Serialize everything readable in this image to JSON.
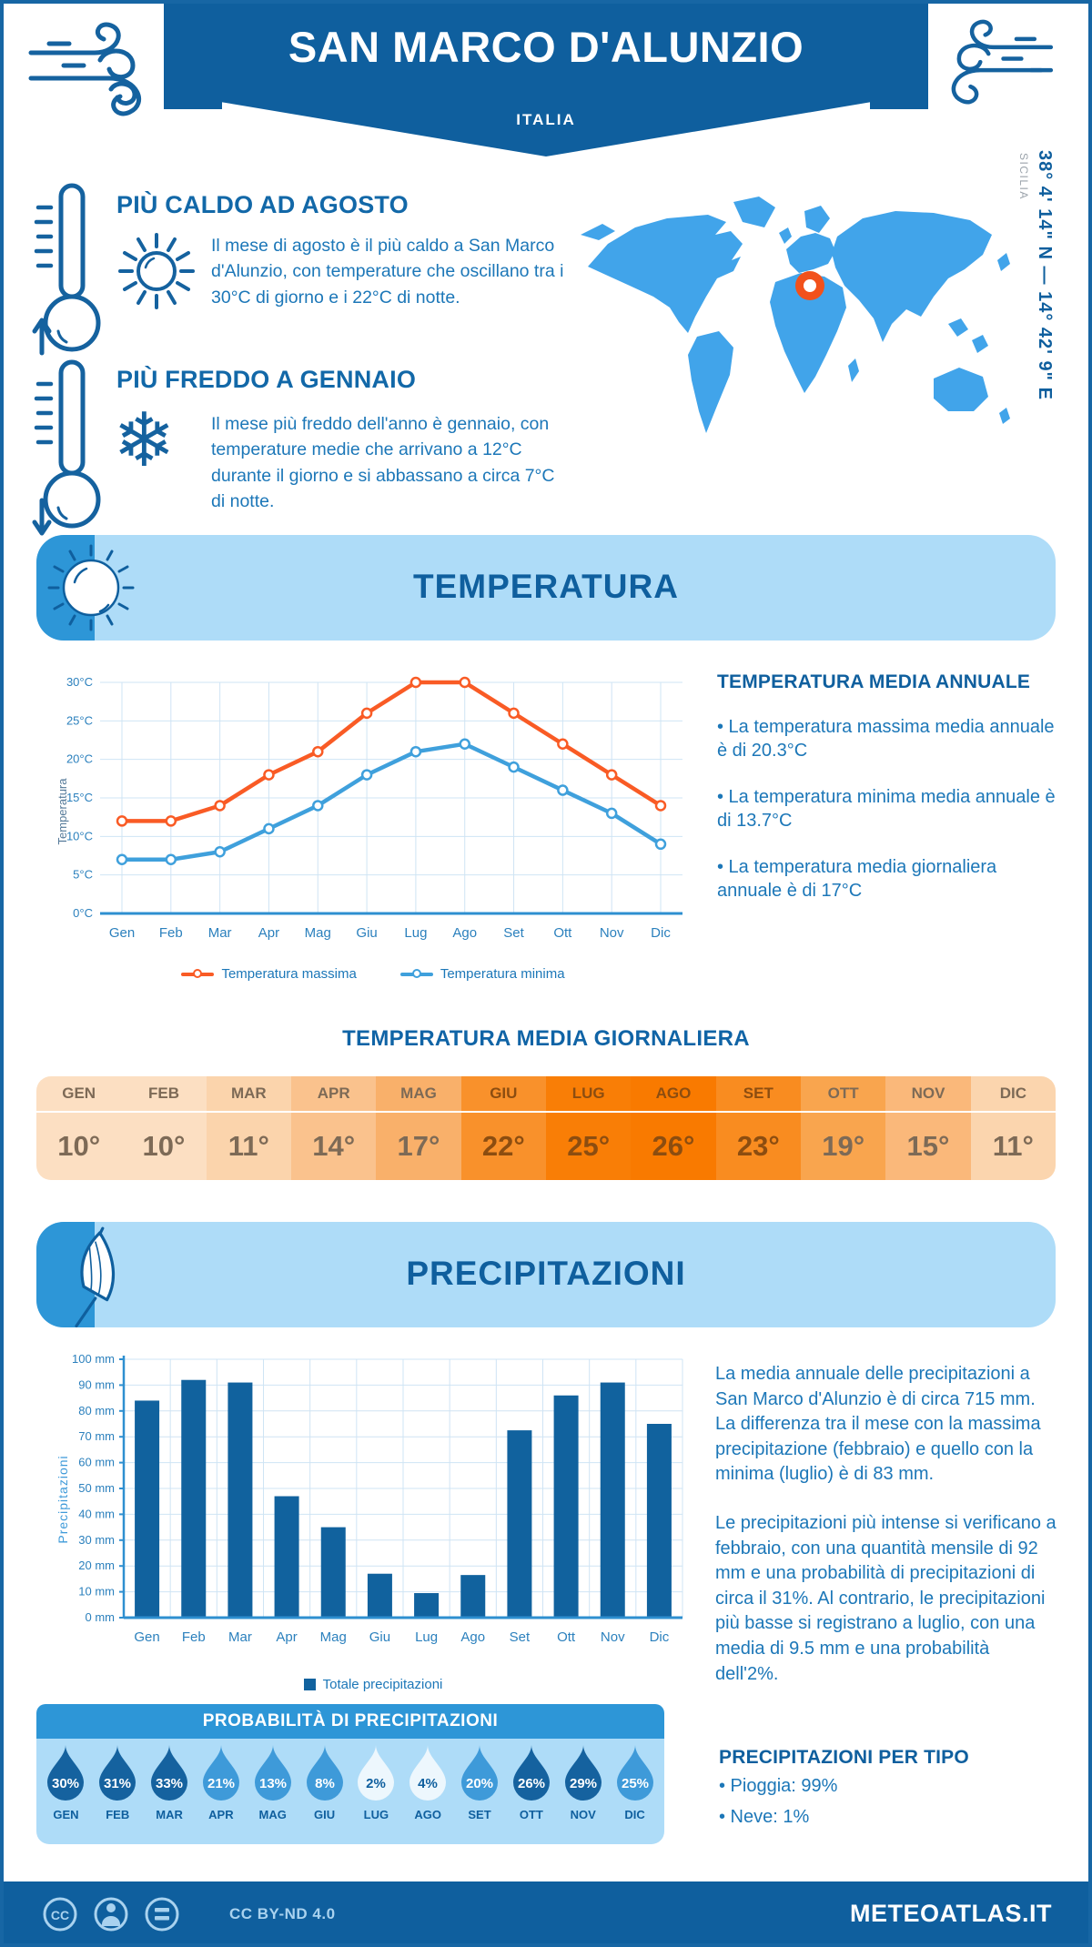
{
  "page": {
    "location": "SAN MARCO D'ALUNZIO",
    "country": "ITALIA",
    "coordinates": "38° 4' 14\" N — 14° 42' 9\" E",
    "region": "SICILIA"
  },
  "highlights": {
    "hot": {
      "title": "PIÙ CALDO AD AGOSTO",
      "text": "Il mese di agosto è il più caldo a San Marco d'Alunzio, con temperature che oscillano tra i 30°C di giorno e i 22°C di notte."
    },
    "cold": {
      "title": "PIÙ FREDDO A GENNAIO",
      "text": "Il mese più freddo dell'anno è gennaio, con temperature medie che arrivano a 12°C durante il giorno e si abbassano a circa 7°C di notte."
    }
  },
  "temperature_section": {
    "title": "TEMPERATURA",
    "annual": {
      "title": "TEMPERATURA MEDIA ANNUALE",
      "bullets": [
        "• La temperatura massima media annuale è di 20.3°C",
        "• La temperatura minima media annuale è di 13.7°C",
        "• La temperatura media giornaliera annuale è di 17°C"
      ]
    },
    "daily": {
      "title": "TEMPERATURA MEDIA GIORNALIERA",
      "cells": [
        {
          "month": "GEN",
          "value": "10°",
          "bg": "#FCDFC2",
          "fg": "#7D6A56"
        },
        {
          "month": "FEB",
          "value": "10°",
          "bg": "#FCDFC2",
          "fg": "#7D6A56"
        },
        {
          "month": "MAR",
          "value": "11°",
          "bg": "#FBD4AC",
          "fg": "#7D6A56"
        },
        {
          "month": "APR",
          "value": "14°",
          "bg": "#FAC28D",
          "fg": "#7D6A56"
        },
        {
          "month": "MAG",
          "value": "17°",
          "bg": "#F9B06A",
          "fg": "#7D6A56"
        },
        {
          "month": "GIU",
          "value": "22°",
          "bg": "#F9912B",
          "fg": "#8C4D10"
        },
        {
          "month": "LUG",
          "value": "25°",
          "bg": "#F97E06",
          "fg": "#8C4D10"
        },
        {
          "month": "AGO",
          "value": "26°",
          "bg": "#F97A00",
          "fg": "#8C4D10"
        },
        {
          "month": "SET",
          "value": "23°",
          "bg": "#F98C20",
          "fg": "#8C4D10"
        },
        {
          "month": "OTT",
          "value": "19°",
          "bg": "#F9A54E",
          "fg": "#7D6A56"
        },
        {
          "month": "NOV",
          "value": "15°",
          "bg": "#FAB87A",
          "fg": "#7D6A56"
        },
        {
          "month": "DIC",
          "value": "11°",
          "bg": "#FBD5AE",
          "fg": "#7D6A56"
        }
      ]
    }
  },
  "precipitation_section": {
    "title": "PRECIPITAZIONI",
    "summary_paragraphs": [
      "La media annuale delle precipitazioni a San Marco d'Alunzio è di circa 715 mm. La differenza tra il mese con la massima precipitazione (febbraio) e quello con la minima (luglio) è di 83 mm.",
      "Le precipitazioni più intense si verificano a febbraio, con una quantità mensile di 92 mm e una probabilità di precipitazioni di circa il 31%. Al contrario, le precipitazioni più basse si registrano a luglio, con una media di 9.5 mm e una probabilità dell'2%."
    ],
    "probability": {
      "title": "PROBABILITÀ DI PRECIPITAZIONI",
      "drops": [
        {
          "month": "GEN",
          "value": "30%",
          "fill": "#15629F",
          "text_color": "#ffffff"
        },
        {
          "month": "FEB",
          "value": "31%",
          "fill": "#15629F",
          "text_color": "#ffffff"
        },
        {
          "month": "MAR",
          "value": "33%",
          "fill": "#15629F",
          "text_color": "#ffffff"
        },
        {
          "month": "APR",
          "value": "21%",
          "fill": "#3E9AD9",
          "text_color": "#ffffff"
        },
        {
          "month": "MAG",
          "value": "13%",
          "fill": "#3E9AD9",
          "text_color": "#ffffff"
        },
        {
          "month": "GIU",
          "value": "8%",
          "fill": "#3E9AD9",
          "text_color": "#ffffff"
        },
        {
          "month": "LUG",
          "value": "2%",
          "fill": "#EDF7FD",
          "text_color": "#0F5F9E"
        },
        {
          "month": "AGO",
          "value": "4%",
          "fill": "#EDF7FD",
          "text_color": "#0F5F9E"
        },
        {
          "month": "SET",
          "value": "20%",
          "fill": "#3E9AD9",
          "text_color": "#ffffff"
        },
        {
          "month": "OTT",
          "value": "26%",
          "fill": "#15629F",
          "text_color": "#ffffff"
        },
        {
          "month": "NOV",
          "value": "29%",
          "fill": "#15629F",
          "text_color": "#ffffff"
        },
        {
          "month": "DIC",
          "value": "25%",
          "fill": "#3E9AD9",
          "text_color": "#ffffff"
        }
      ]
    },
    "by_type": {
      "title": "PRECIPITAZIONI PER TIPO",
      "items": [
        "• Pioggia: 99%",
        "• Neve: 1%"
      ]
    }
  },
  "chart_data": [
    {
      "type": "line",
      "categories": [
        "Gen",
        "Feb",
        "Mar",
        "Apr",
        "Mag",
        "Giu",
        "Lug",
        "Ago",
        "Set",
        "Ott",
        "Nov",
        "Dic"
      ],
      "series": [
        {
          "name": "Temperatura massima",
          "color": "#F95B25",
          "values": [
            12,
            12,
            14,
            18,
            21,
            26,
            30,
            30,
            26,
            22,
            18,
            14
          ]
        },
        {
          "name": "Temperatura minima",
          "color": "#3FA0DC",
          "values": [
            7,
            7,
            8,
            11,
            14,
            18,
            21,
            22,
            19,
            16,
            13,
            9
          ]
        }
      ],
      "ylabel": "Temperatura",
      "ylim": [
        0,
        30
      ],
      "ytick_step": 5,
      "ytick_suffix": "°C",
      "grid": true,
      "legend_position": "bottom"
    },
    {
      "type": "bar",
      "categories": [
        "Gen",
        "Feb",
        "Mar",
        "Apr",
        "Mag",
        "Giu",
        "Lug",
        "Ago",
        "Set",
        "Ott",
        "Nov",
        "Dic"
      ],
      "values": [
        84,
        92,
        91,
        47,
        35,
        17,
        9.5,
        16.5,
        72.5,
        86,
        91,
        75
      ],
      "series_name": "Totale precipitazioni",
      "color": "#11629E",
      "ylabel": "Precipitazioni",
      "ylim": [
        0,
        100
      ],
      "ytick_step": 10,
      "ytick_suffix": " mm",
      "grid": true,
      "legend_position": "bottom"
    }
  ],
  "footer": {
    "license": "CC BY-ND 4.0",
    "site": "METEOATLAS.IT",
    "icons": [
      "cc-icon",
      "person-icon",
      "equals-icon"
    ]
  },
  "colors": {
    "primary_dark_blue": "#0F5F9E",
    "body_blue": "#1C77B8",
    "banner_light_blue": "#AEDCF8",
    "banner_tab_blue": "#2D96D7",
    "map_blue": "#41A4EA",
    "marker_orange": "#F2511B",
    "grid_blue": "#CFE4F4",
    "axis_blue": "#2E8FD0",
    "border_blue": "#1766A4"
  }
}
